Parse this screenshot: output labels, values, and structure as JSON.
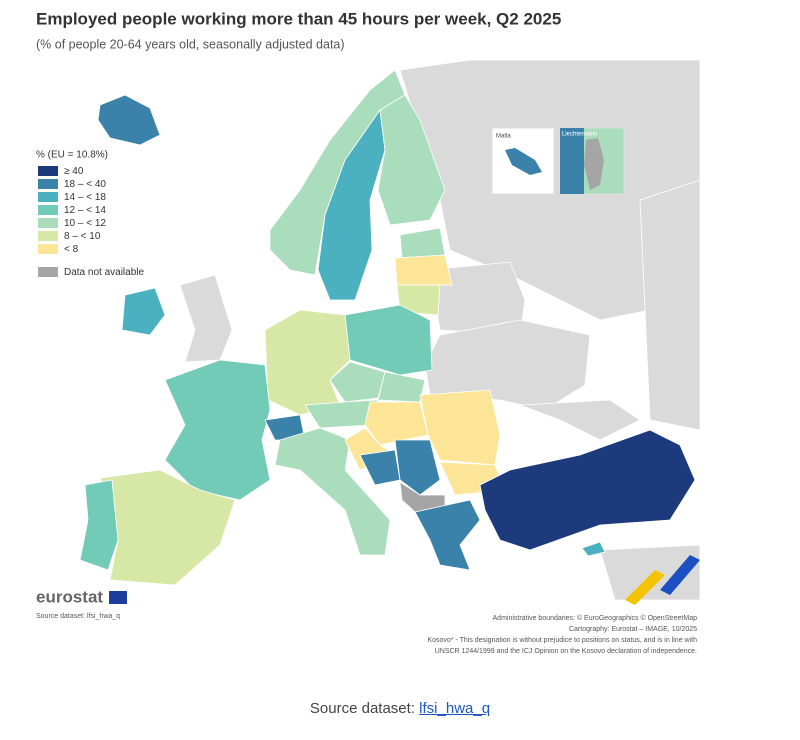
{
  "header": {
    "title": "Employed people working more than 45 hours per week, Q2 2025",
    "subtitle": "(% of people 20-64 years old, seasonally adjusted data)"
  },
  "legend": {
    "title": "% (EU = 10.8%)",
    "items": [
      {
        "label": "≥ 40",
        "color": "#1d3b7c"
      },
      {
        "label": "18 – < 40",
        "color": "#3b82aa"
      },
      {
        "label": "14 – < 18",
        "color": "#4bb0bf"
      },
      {
        "label": "12 – < 14",
        "color": "#72cbb6"
      },
      {
        "label": "10 – < 12",
        "color": "#a9ddbb"
      },
      {
        "label": "8 – < 10",
        "color": "#d7e8a6"
      },
      {
        "label": "< 8",
        "color": "#fde597"
      },
      {
        "label": "Data not available",
        "color": "#a5a5a5"
      }
    ]
  },
  "insets": {
    "malta": "Malta",
    "liechtenstein": "Liechtenstein"
  },
  "footer": {
    "logo": "eurostat",
    "source": "Source dataset: lfsi_hwa_q",
    "credits": [
      "Administrative boundaries: © EuroGeographics © OpenStreetMap",
      "Cartography: Eurostat – IMAGE, 10/2025",
      "Kosovo* - This designation is without prejudice to positions on status, and is in line with",
      "UNSCR 1244/1999 and the ICJ Opinion on the Kosovo declaration of independence."
    ]
  },
  "page_source": {
    "label": "Source dataset:",
    "link": "lfsi_hwa_q"
  }
}
